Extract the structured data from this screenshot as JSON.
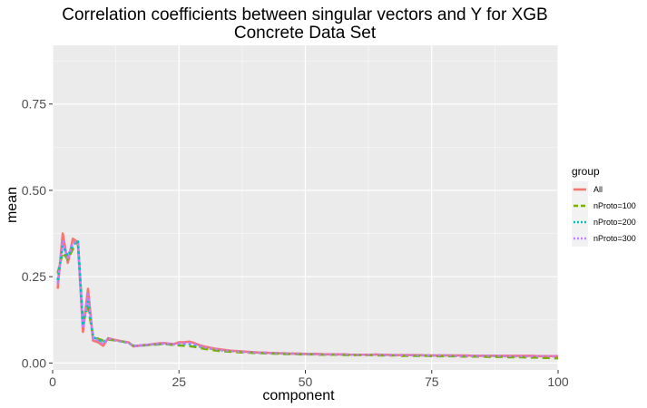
{
  "chart_data": {
    "type": "line",
    "title": "Correlation coefficients between singular vectors and Y for XGB",
    "subtitle": "Concrete Data Set",
    "xlabel": "component",
    "ylabel": "mean",
    "xlim": [
      0,
      100
    ],
    "ylim": [
      -0.02,
      0.92
    ],
    "x_ticks": [
      0,
      25,
      50,
      75,
      100
    ],
    "x_tick_labels": [
      "0",
      "25",
      "50",
      "75",
      "100"
    ],
    "y_ticks": [
      0.0,
      0.25,
      0.5,
      0.75
    ],
    "y_tick_labels": [
      "0.00",
      "0.25",
      "0.50",
      "0.75"
    ],
    "grid": true,
    "legend": {
      "title": "group",
      "position": "right"
    },
    "x": [
      1,
      2,
      3,
      4,
      5,
      6,
      7,
      8,
      9,
      10,
      11,
      12,
      13,
      14,
      15,
      16,
      17,
      18,
      19,
      20,
      21,
      22,
      23,
      24,
      25,
      26,
      27,
      28,
      29,
      30,
      31,
      32,
      33,
      34,
      35,
      36,
      37,
      38,
      39,
      40,
      41,
      42,
      43,
      44,
      45,
      46,
      47,
      48,
      49,
      50,
      51,
      52,
      53,
      54,
      55,
      56,
      57,
      58,
      59,
      60,
      61,
      62,
      63,
      64,
      65,
      66,
      67,
      68,
      69,
      70,
      71,
      72,
      73,
      74,
      75,
      76,
      77,
      78,
      79,
      80,
      81,
      82,
      83,
      84,
      85,
      86,
      87,
      88,
      89,
      90,
      91,
      92,
      93,
      94,
      95,
      96,
      97,
      98,
      99,
      100
    ],
    "series": [
      {
        "name": "All",
        "color": "#F8766D",
        "dash": "solid",
        "values": [
          0.215,
          0.375,
          0.29,
          0.36,
          0.35,
          0.09,
          0.215,
          0.065,
          0.06,
          0.05,
          0.072,
          0.068,
          0.065,
          0.062,
          0.06,
          0.048,
          0.05,
          0.052,
          0.053,
          0.055,
          0.057,
          0.058,
          0.056,
          0.055,
          0.06,
          0.06,
          0.062,
          0.058,
          0.052,
          0.048,
          0.045,
          0.042,
          0.04,
          0.038,
          0.036,
          0.035,
          0.034,
          0.033,
          0.032,
          0.031,
          0.03,
          0.03,
          0.029,
          0.029,
          0.028,
          0.028,
          0.027,
          0.027,
          0.027,
          0.026,
          0.026,
          0.026,
          0.026,
          0.025,
          0.025,
          0.025,
          0.025,
          0.025,
          0.024,
          0.024,
          0.024,
          0.024,
          0.024,
          0.025,
          0.024,
          0.024,
          0.023,
          0.023,
          0.023,
          0.023,
          0.023,
          0.023,
          0.023,
          0.022,
          0.022,
          0.022,
          0.022,
          0.022,
          0.022,
          0.022,
          0.022,
          0.022,
          0.021,
          0.021,
          0.021,
          0.021,
          0.021,
          0.021,
          0.021,
          0.021,
          0.021,
          0.021,
          0.021,
          0.021,
          0.021,
          0.02,
          0.02,
          0.02,
          0.02,
          0.02
        ]
      },
      {
        "name": "nProto=100",
        "color": "#7CAE00",
        "dash": "dashed",
        "values": [
          0.26,
          0.32,
          0.3,
          0.33,
          0.35,
          0.12,
          0.16,
          0.08,
          0.07,
          0.065,
          0.068,
          0.066,
          0.064,
          0.062,
          0.058,
          0.05,
          0.05,
          0.051,
          0.052,
          0.053,
          0.054,
          0.055,
          0.054,
          0.052,
          0.051,
          0.05,
          0.049,
          0.047,
          0.044,
          0.041,
          0.039,
          0.037,
          0.035,
          0.034,
          0.033,
          0.032,
          0.031,
          0.03,
          0.03,
          0.029,
          0.029,
          0.028,
          0.028,
          0.027,
          0.027,
          0.026,
          0.026,
          0.026,
          0.025,
          0.025,
          0.025,
          0.025,
          0.024,
          0.024,
          0.024,
          0.024,
          0.024,
          0.023,
          0.023,
          0.023,
          0.023,
          0.023,
          0.023,
          0.022,
          0.022,
          0.022,
          0.022,
          0.022,
          0.021,
          0.021,
          0.021,
          0.021,
          0.021,
          0.021,
          0.02,
          0.02,
          0.02,
          0.02,
          0.02,
          0.02,
          0.019,
          0.019,
          0.019,
          0.019,
          0.019,
          0.018,
          0.018,
          0.018,
          0.018,
          0.017,
          0.017,
          0.017,
          0.017,
          0.016,
          0.016,
          0.016,
          0.015,
          0.015,
          0.014,
          0.014
        ]
      },
      {
        "name": "nProto=200",
        "color": "#00BFC4",
        "dash": "dotted",
        "values": [
          0.24,
          0.34,
          0.31,
          0.34,
          0.355,
          0.11,
          0.18,
          0.075,
          0.068,
          0.06,
          0.07,
          0.067,
          0.064,
          0.061,
          0.058,
          0.05,
          0.05,
          0.052,
          0.053,
          0.054,
          0.055,
          0.056,
          0.055,
          0.054,
          0.055,
          0.055,
          0.055,
          0.052,
          0.048,
          0.045,
          0.042,
          0.04,
          0.038,
          0.036,
          0.035,
          0.034,
          0.033,
          0.032,
          0.031,
          0.03,
          0.03,
          0.029,
          0.029,
          0.028,
          0.028,
          0.027,
          0.027,
          0.027,
          0.026,
          0.026,
          0.026,
          0.026,
          0.025,
          0.025,
          0.025,
          0.025,
          0.025,
          0.024,
          0.024,
          0.024,
          0.024,
          0.024,
          0.024,
          0.024,
          0.024,
          0.023,
          0.023,
          0.023,
          0.023,
          0.023,
          0.023,
          0.022,
          0.022,
          0.022,
          0.022,
          0.022,
          0.022,
          0.022,
          0.021,
          0.021,
          0.021,
          0.021,
          0.021,
          0.021,
          0.021,
          0.021,
          0.021,
          0.02,
          0.02,
          0.02,
          0.02,
          0.02,
          0.02,
          0.02,
          0.02,
          0.02,
          0.02,
          0.02,
          0.02,
          0.02
        ]
      },
      {
        "name": "nProto=300",
        "color": "#C77CFF",
        "dash": "dotted",
        "values": [
          0.23,
          0.355,
          0.3,
          0.35,
          0.35,
          0.1,
          0.2,
          0.07,
          0.065,
          0.055,
          0.071,
          0.067,
          0.064,
          0.061,
          0.059,
          0.049,
          0.05,
          0.052,
          0.053,
          0.055,
          0.056,
          0.057,
          0.056,
          0.054,
          0.057,
          0.057,
          0.058,
          0.055,
          0.05,
          0.046,
          0.043,
          0.041,
          0.039,
          0.037,
          0.035,
          0.034,
          0.033,
          0.032,
          0.031,
          0.031,
          0.03,
          0.03,
          0.029,
          0.029,
          0.028,
          0.028,
          0.027,
          0.027,
          0.027,
          0.026,
          0.026,
          0.026,
          0.025,
          0.025,
          0.025,
          0.025,
          0.025,
          0.025,
          0.024,
          0.024,
          0.024,
          0.024,
          0.024,
          0.024,
          0.024,
          0.024,
          0.023,
          0.023,
          0.023,
          0.023,
          0.023,
          0.023,
          0.022,
          0.022,
          0.022,
          0.022,
          0.022,
          0.022,
          0.022,
          0.021,
          0.021,
          0.021,
          0.021,
          0.021,
          0.021,
          0.021,
          0.021,
          0.021,
          0.021,
          0.021,
          0.02,
          0.02,
          0.02,
          0.02,
          0.02,
          0.02,
          0.02,
          0.02,
          0.02,
          0.02
        ]
      }
    ]
  },
  "colors": {
    "panel_background": "#EBEBEB",
    "grid_major": "#FFFFFF",
    "legend_key_background": "#F2F2F2"
  }
}
